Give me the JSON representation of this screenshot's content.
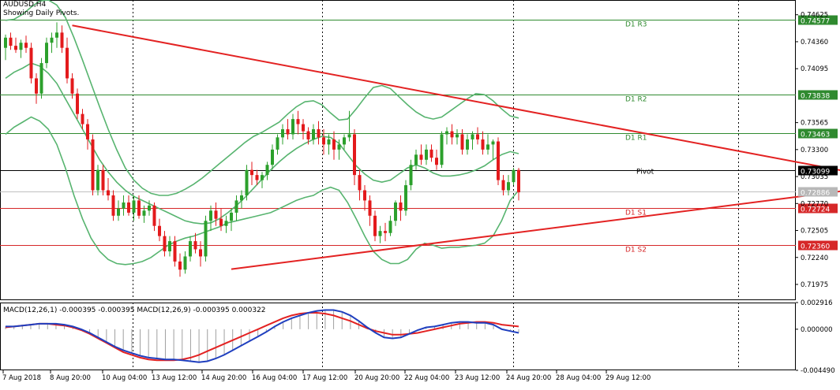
{
  "header": {
    "symbol_tf": "AUDUSD,H4",
    "subtitle": "Showing Daily Pivots."
  },
  "macd_label": "MACD(12,26,1) -0.000395 -0.000395 MACD(12,26,9) -0.000395 0.000322",
  "colors": {
    "bull_candle": "#2ca02c",
    "bear_candle": "#e31a1c",
    "bollinger": "#57b46f",
    "trendline": "#e32222",
    "resistance": "#2f8a2f",
    "support": "#d62728",
    "pivot": "#000000",
    "macd_main": "#1f3fbf",
    "macd_signal": "#e32222",
    "histogram": "#a0a0a0",
    "grid": "#000000"
  },
  "chart_data": [
    {
      "type": "candlestick",
      "title": "AUDUSD,H4",
      "ylim": [
        0.7182,
        0.7477
      ],
      "y_ticks": [
        "0.74625",
        "0.74360",
        "0.74095",
        "0.73565",
        "0.73300",
        "0.73035",
        "0.72770",
        "0.72505",
        "0.72240",
        "0.71975"
      ],
      "x_ticks": [
        "7 Aug 2018",
        "8 Aug 20:00",
        "10 Aug 04:00",
        "13 Aug 12:00",
        "14 Aug 20:00",
        "16 Aug 04:00",
        "17 Aug 12:00",
        "20 Aug 20:00",
        "22 Aug 04:00",
        "23 Aug 12:00",
        "24 Aug 20:00",
        "28 Aug 04:00",
        "29 Aug 12:00"
      ],
      "levels": [
        {
          "name": "D1 R3",
          "value": 0.74577,
          "kind": "resistance"
        },
        {
          "name": "D1 R2",
          "value": 0.73838,
          "kind": "resistance"
        },
        {
          "name": "D1 R1",
          "value": 0.73463,
          "kind": "resistance"
        },
        {
          "name": "Pivot",
          "value": 0.73099,
          "kind": "pivot"
        },
        {
          "name": "D1 S1",
          "value": 0.72724,
          "kind": "support"
        },
        {
          "name": "D1 S2",
          "value": 0.7236,
          "kind": "support"
        }
      ],
      "current_price": 0.72886,
      "ohlc": [
        [
          0.743,
          0.7443,
          0.7418,
          0.744
        ],
        [
          0.744,
          0.7445,
          0.7428,
          0.7432
        ],
        [
          0.7432,
          0.744,
          0.7425,
          0.7428
        ],
        [
          0.7428,
          0.7438,
          0.742,
          0.7435
        ],
        [
          0.7435,
          0.7442,
          0.7425,
          0.743
        ],
        [
          0.743,
          0.7435,
          0.7395,
          0.74
        ],
        [
          0.74,
          0.7405,
          0.7375,
          0.7385
        ],
        [
          0.7385,
          0.742,
          0.738,
          0.7415
        ],
        [
          0.7415,
          0.744,
          0.741,
          0.7435
        ],
        [
          0.7435,
          0.7445,
          0.7425,
          0.744
        ],
        [
          0.744,
          0.7455,
          0.743,
          0.7445
        ],
        [
          0.7445,
          0.7452,
          0.7425,
          0.743
        ],
        [
          0.743,
          0.744,
          0.7395,
          0.74
        ],
        [
          0.74,
          0.7405,
          0.738,
          0.7385
        ],
        [
          0.7385,
          0.739,
          0.736,
          0.7365
        ],
        [
          0.7365,
          0.737,
          0.735,
          0.7355
        ],
        [
          0.7355,
          0.736,
          0.733,
          0.734
        ],
        [
          0.734,
          0.7345,
          0.7285,
          0.729
        ],
        [
          0.729,
          0.7315,
          0.7285,
          0.731
        ],
        [
          0.731,
          0.7315,
          0.7285,
          0.729
        ],
        [
          0.729,
          0.7302,
          0.728,
          0.7285
        ],
        [
          0.7285,
          0.729,
          0.726,
          0.7265
        ],
        [
          0.7265,
          0.728,
          0.726,
          0.7272
        ],
        [
          0.7272,
          0.7285,
          0.7265,
          0.7278
        ],
        [
          0.7278,
          0.7285,
          0.7265,
          0.7268
        ],
        [
          0.7268,
          0.7285,
          0.726,
          0.728
        ],
        [
          0.728,
          0.7285,
          0.7262,
          0.7265
        ],
        [
          0.7265,
          0.7275,
          0.7258,
          0.727
        ],
        [
          0.727,
          0.728,
          0.7265,
          0.7275
        ],
        [
          0.7275,
          0.7278,
          0.725,
          0.7255
        ],
        [
          0.7255,
          0.7262,
          0.724,
          0.7245
        ],
        [
          0.7245,
          0.725,
          0.7225,
          0.723
        ],
        [
          0.723,
          0.7245,
          0.7225,
          0.724
        ],
        [
          0.724,
          0.7245,
          0.7215,
          0.722
        ],
        [
          0.722,
          0.7228,
          0.7205,
          0.7212
        ],
        [
          0.7212,
          0.723,
          0.7208,
          0.7225
        ],
        [
          0.7225,
          0.7245,
          0.722,
          0.724
        ],
        [
          0.724,
          0.7248,
          0.7228,
          0.7232
        ],
        [
          0.7232,
          0.724,
          0.7215,
          0.7225
        ],
        [
          0.7225,
          0.7265,
          0.722,
          0.726
        ],
        [
          0.726,
          0.7275,
          0.725,
          0.727
        ],
        [
          0.727,
          0.7278,
          0.7255,
          0.7262
        ],
        [
          0.7262,
          0.7272,
          0.725,
          0.7255
        ],
        [
          0.7255,
          0.7265,
          0.7248,
          0.726
        ],
        [
          0.726,
          0.7272,
          0.725,
          0.7268
        ],
        [
          0.7268,
          0.7285,
          0.726,
          0.728
        ],
        [
          0.728,
          0.729,
          0.7272,
          0.7285
        ],
        [
          0.7285,
          0.7315,
          0.728,
          0.731
        ],
        [
          0.731,
          0.7318,
          0.7295,
          0.7305
        ],
        [
          0.7305,
          0.731,
          0.7295,
          0.73
        ],
        [
          0.73,
          0.7308,
          0.7292,
          0.7305
        ],
        [
          0.7305,
          0.7318,
          0.73,
          0.7315
        ],
        [
          0.7315,
          0.7335,
          0.731,
          0.733
        ],
        [
          0.733,
          0.7345,
          0.7325,
          0.7342
        ],
        [
          0.7342,
          0.7355,
          0.7335,
          0.735
        ],
        [
          0.735,
          0.736,
          0.734,
          0.7345
        ],
        [
          0.7345,
          0.7365,
          0.734,
          0.736
        ],
        [
          0.736,
          0.7368,
          0.7345,
          0.7355
        ],
        [
          0.7355,
          0.736,
          0.734,
          0.7348
        ],
        [
          0.7348,
          0.7352,
          0.7335,
          0.734
        ],
        [
          0.734,
          0.7355,
          0.7335,
          0.735
        ],
        [
          0.735,
          0.7358,
          0.7335,
          0.7342
        ],
        [
          0.7342,
          0.735,
          0.7325,
          0.7335
        ],
        [
          0.7335,
          0.7345,
          0.7325,
          0.734
        ],
        [
          0.734,
          0.7348,
          0.732,
          0.733
        ],
        [
          0.733,
          0.734,
          0.732,
          0.7335
        ],
        [
          0.7335,
          0.7345,
          0.733,
          0.7342
        ],
        [
          0.7342,
          0.7368,
          0.7338,
          0.7345
        ],
        [
          0.7345,
          0.735,
          0.7295,
          0.7305
        ],
        [
          0.7305,
          0.731,
          0.728,
          0.729
        ],
        [
          0.729,
          0.7295,
          0.727,
          0.728
        ],
        [
          0.728,
          0.7285,
          0.7255,
          0.7265
        ],
        [
          0.7265,
          0.727,
          0.724,
          0.7245
        ],
        [
          0.7245,
          0.7255,
          0.7238,
          0.725
        ],
        [
          0.725,
          0.7258,
          0.724,
          0.7248
        ],
        [
          0.7248,
          0.7265,
          0.7245,
          0.726
        ],
        [
          0.726,
          0.728,
          0.7255,
          0.7278
        ],
        [
          0.7278,
          0.7285,
          0.726,
          0.727
        ],
        [
          0.727,
          0.73,
          0.7265,
          0.7295
        ],
        [
          0.7295,
          0.732,
          0.729,
          0.7315
        ],
        [
          0.7315,
          0.733,
          0.731,
          0.7325
        ],
        [
          0.7325,
          0.7335,
          0.7315,
          0.732
        ],
        [
          0.732,
          0.7335,
          0.7315,
          0.733
        ],
        [
          0.733,
          0.7335,
          0.7318,
          0.7322
        ],
        [
          0.7322,
          0.733,
          0.731,
          0.7315
        ],
        [
          0.7315,
          0.7348,
          0.7312,
          0.7345
        ],
        [
          0.7345,
          0.7352,
          0.7335,
          0.7348
        ],
        [
          0.7348,
          0.7355,
          0.7335,
          0.7342
        ],
        [
          0.7342,
          0.735,
          0.7335,
          0.7345
        ],
        [
          0.7345,
          0.735,
          0.7325,
          0.733
        ],
        [
          0.733,
          0.7345,
          0.7325,
          0.734
        ],
        [
          0.734,
          0.7348,
          0.733,
          0.7345
        ],
        [
          0.7345,
          0.7352,
          0.7335,
          0.734
        ],
        [
          0.734,
          0.7348,
          0.7325,
          0.733
        ],
        [
          0.733,
          0.7345,
          0.7325,
          0.7335
        ],
        [
          0.7335,
          0.734,
          0.732,
          0.7338
        ],
        [
          0.7338,
          0.7342,
          0.7295,
          0.73
        ],
        [
          0.73,
          0.7305,
          0.7285,
          0.729
        ],
        [
          0.729,
          0.7305,
          0.7285,
          0.7298
        ],
        [
          0.7298,
          0.7312,
          0.7295,
          0.731
        ],
        [
          0.731,
          0.7312,
          0.728,
          0.7288
        ]
      ],
      "bollinger": {
        "upper": [
          0.7457,
          0.7458,
          0.7463,
          0.747,
          0.7476,
          0.7477,
          0.7472,
          0.746,
          0.744,
          0.7418,
          0.7395,
          0.7372,
          0.735,
          0.733,
          0.7312,
          0.73,
          0.7292,
          0.7287,
          0.7285,
          0.7285,
          0.7287,
          0.7291,
          0.7296,
          0.7302,
          0.7309,
          0.7316,
          0.7323,
          0.733,
          0.7337,
          0.7343,
          0.7347,
          0.7352,
          0.7357,
          0.7365,
          0.7372,
          0.7377,
          0.7378,
          0.7374,
          0.7366,
          0.7359,
          0.736,
          0.737,
          0.7381,
          0.7391,
          0.7393,
          0.739,
          0.7382,
          0.7374,
          0.7367,
          0.7362,
          0.736,
          0.7362,
          0.7368,
          0.7374,
          0.738,
          0.7385,
          0.7384,
          0.7378,
          0.737,
          0.7363,
          0.7361
        ],
        "middle": [
          0.74,
          0.7406,
          0.741,
          0.7415,
          0.7412,
          0.7405,
          0.7395,
          0.738,
          0.7365,
          0.735,
          0.7335,
          0.732,
          0.7308,
          0.7298,
          0.729,
          0.7284,
          0.728,
          0.7276,
          0.7272,
          0.7268,
          0.7264,
          0.726,
          0.7258,
          0.7257,
          0.7258,
          0.7262,
          0.7268,
          0.7275,
          0.7283,
          0.7292,
          0.7301,
          0.731,
          0.7318,
          0.7325,
          0.7331,
          0.7336,
          0.734,
          0.7343,
          0.7342,
          0.7336,
          0.7325,
          0.7314,
          0.7306,
          0.73,
          0.7298,
          0.73,
          0.7306,
          0.7312,
          0.7315,
          0.7312,
          0.7307,
          0.7304,
          0.7304,
          0.7305,
          0.7307,
          0.731,
          0.7314,
          0.732,
          0.7325,
          0.7328,
          0.7326
        ],
        "lower": [
          0.7345,
          0.7352,
          0.7357,
          0.7362,
          0.7358,
          0.735,
          0.7335,
          0.7312,
          0.7285,
          0.7262,
          0.7243,
          0.723,
          0.7222,
          0.7218,
          0.7217,
          0.7218,
          0.722,
          0.7224,
          0.723,
          0.7236,
          0.724,
          0.7243,
          0.7245,
          0.7248,
          0.7251,
          0.7254,
          0.7258,
          0.726,
          0.7262,
          0.7264,
          0.7266,
          0.7268,
          0.7272,
          0.7276,
          0.728,
          0.7283,
          0.7285,
          0.729,
          0.7293,
          0.729,
          0.7278,
          0.7262,
          0.7245,
          0.723,
          0.7222,
          0.7218,
          0.7218,
          0.7222,
          0.7232,
          0.7238,
          0.7236,
          0.7233,
          0.7234,
          0.7234,
          0.7235,
          0.7236,
          0.7238,
          0.7245,
          0.726,
          0.728,
          0.729
        ]
      },
      "trendlines": [
        {
          "from": {
            "bar": 13,
            "price": 0.7452
          },
          "to": {
            "bar": 165,
            "price": 0.73075
          }
        },
        {
          "from": {
            "bar": 44,
            "price": 0.72125
          },
          "to": {
            "bar": 165,
            "price": 0.72905
          }
        }
      ]
    },
    {
      "type": "macd",
      "ylim": [
        -0.00449,
        0.002916
      ],
      "y_ticks": [
        "0.002916",
        "0.000000",
        "-0.004490"
      ],
      "macd": [
        0.0003,
        0.0003,
        0.0004,
        0.0005,
        0.0006,
        0.0006,
        0.0006,
        0.0005,
        0.0003,
        0.0,
        -0.0004,
        -0.0009,
        -0.0014,
        -0.0019,
        -0.0023,
        -0.0026,
        -0.0029,
        -0.0031,
        -0.0032,
        -0.0033,
        -0.0033,
        -0.0034,
        -0.0035,
        -0.0036,
        -0.0035,
        -0.0032,
        -0.0028,
        -0.0023,
        -0.0018,
        -0.0013,
        -0.0008,
        -0.0003,
        0.0003,
        0.0008,
        0.0012,
        0.0015,
        0.0018,
        0.002,
        0.0021,
        0.0021,
        0.0019,
        0.0015,
        0.0009,
        0.0002,
        -0.0004,
        -0.0009,
        -0.001,
        -0.0009,
        -0.0005,
        -0.0001,
        0.0002,
        0.0003,
        0.0005,
        0.0007,
        0.0008,
        0.0008,
        0.0007,
        0.0007,
        0.0005,
        0.0,
        -0.0002,
        -0.0004
      ],
      "signal": [
        0.0002,
        0.0003,
        0.0004,
        0.0005,
        0.0006,
        0.0006,
        0.0005,
        0.0004,
        0.0002,
        -0.0001,
        -0.0005,
        -0.001,
        -0.0015,
        -0.002,
        -0.0025,
        -0.0028,
        -0.0031,
        -0.0033,
        -0.0034,
        -0.0034,
        -0.0034,
        -0.0033,
        -0.0031,
        -0.0028,
        -0.0024,
        -0.002,
        -0.0016,
        -0.0012,
        -0.0008,
        -0.0004,
        0.0,
        0.0004,
        0.0008,
        0.0012,
        0.0015,
        0.0017,
        0.0018,
        0.0018,
        0.0017,
        0.0015,
        0.0012,
        0.0009,
        0.0005,
        0.0001,
        -0.0002,
        -0.0004,
        -0.0006,
        -0.0006,
        -0.0005,
        -0.0004,
        -0.0002,
        0.0,
        0.0002,
        0.0004,
        0.0006,
        0.0007,
        0.0008,
        0.0008,
        0.0007,
        0.0005,
        0.0004,
        0.0003
      ]
    }
  ]
}
